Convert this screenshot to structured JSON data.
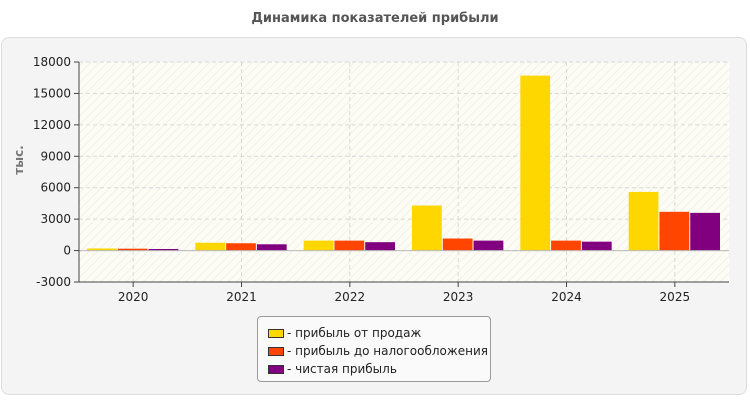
{
  "chart_data": {
    "type": "bar",
    "title": "Динамика показателей прибыли",
    "ylabel": "тыс.",
    "xlabel": "",
    "categories": [
      "2020",
      "2021",
      "2022",
      "2023",
      "2024",
      "2025"
    ],
    "ylim": [
      -3000,
      18000
    ],
    "yticks": [
      18000,
      15000,
      12000,
      9000,
      6000,
      3000,
      0,
      -3000
    ],
    "grid": true,
    "legend_position": "bottom",
    "series": [
      {
        "name": "- прибыль от продаж",
        "color": "#FFD700",
        "values": [
          200,
          750,
          950,
          4300,
          16700,
          5600
        ]
      },
      {
        "name": "- прибыль до налогообложения",
        "color": "#FF4500",
        "values": [
          180,
          700,
          950,
          1150,
          950,
          3700
        ]
      },
      {
        "name": "- чистая прибыль",
        "color": "#800080",
        "values": [
          150,
          600,
          800,
          950,
          850,
          3600
        ]
      }
    ]
  }
}
